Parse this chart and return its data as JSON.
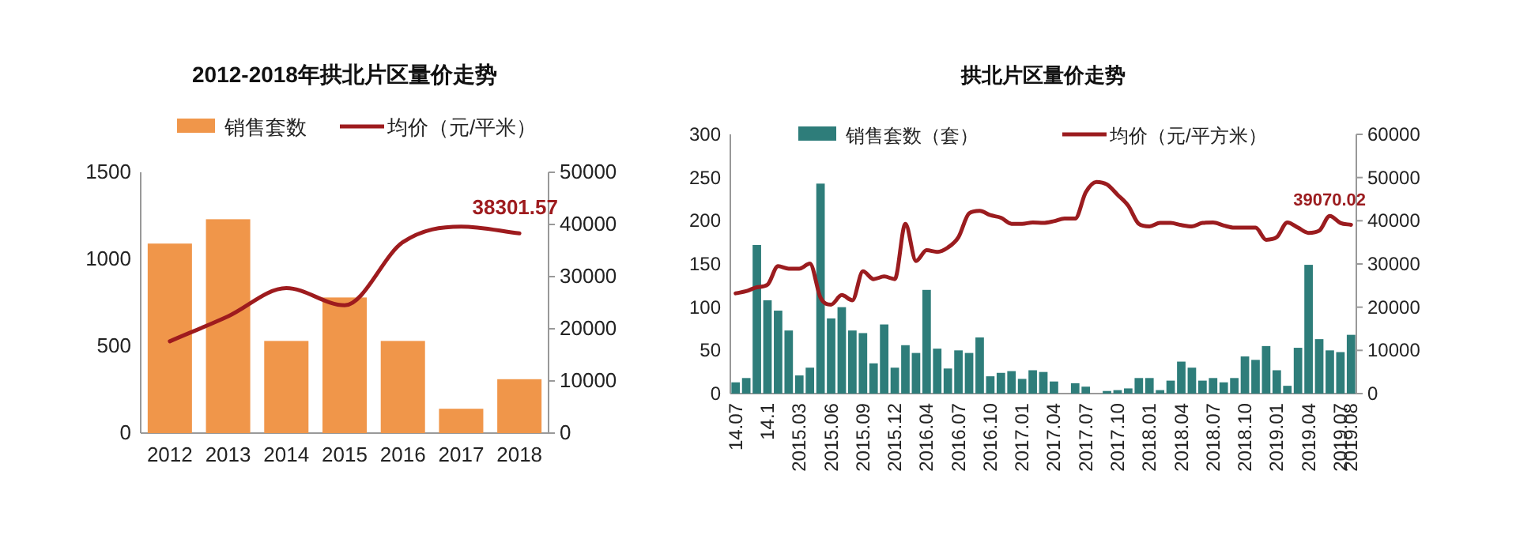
{
  "chart_data": [
    {
      "type": "bar",
      "title": "2012-2018年拱北片区量价走势",
      "categories": [
        "2012",
        "2013",
        "2014",
        "2015",
        "2016",
        "2017",
        "2018"
      ],
      "legend": "top",
      "ylim": [
        0,
        1500
      ],
      "yticks": [
        0,
        500,
        1000,
        1500
      ],
      "y2lim": [
        0,
        50000
      ],
      "y2ticks": [
        0,
        10000,
        20000,
        30000,
        40000,
        50000
      ],
      "series": [
        {
          "name": "销售套数",
          "color": "#f0964a",
          "values": [
            1090,
            1230,
            530,
            780,
            530,
            140,
            310
          ]
        },
        {
          "name": "均价（元/平米）",
          "type": "line",
          "axis": "y2",
          "color": "#9e1b1e",
          "values": [
            17600,
            22400,
            27800,
            24500,
            36600,
            39600,
            38301.57
          ],
          "value_labels": [
            null,
            null,
            null,
            null,
            null,
            null,
            "38301.57"
          ]
        }
      ]
    },
    {
      "type": "bar",
      "title": "拱北片区量价走势",
      "categories": [
        "14.07",
        null,
        null,
        "14.1",
        null,
        null,
        "2015.03",
        null,
        null,
        "2015.06",
        null,
        null,
        "2015.09",
        null,
        null,
        "2015.12",
        null,
        null,
        "2016.04",
        null,
        null,
        "2016.07",
        null,
        null,
        "2016.10",
        null,
        null,
        "2017.01",
        null,
        null,
        "2017.04",
        null,
        null,
        "2017.07",
        null,
        null,
        "2017.10",
        null,
        null,
        "2018.01",
        null,
        null,
        "2018.04",
        null,
        null,
        "2018.07",
        null,
        null,
        "2018.10",
        null,
        null,
        "2019.01",
        null,
        null,
        "2019.04",
        null,
        null,
        "2019.07",
        "2019.08"
      ],
      "legend": "top",
      "ylim": [
        0,
        300
      ],
      "yticks": [
        0,
        50,
        100,
        150,
        200,
        250,
        300
      ],
      "y2lim": [
        0,
        60000
      ],
      "y2ticks": [
        0,
        10000,
        20000,
        30000,
        40000,
        50000,
        60000
      ],
      "series": [
        {
          "name": "销售套数（套）",
          "color": "#2e7d7a",
          "values": [
            13,
            18,
            172,
            108,
            96,
            73,
            21,
            30,
            243,
            87,
            100,
            73,
            70,
            35,
            80,
            30,
            56,
            47,
            120,
            52,
            29,
            50,
            47,
            65,
            20,
            24,
            26,
            17,
            27,
            25,
            14,
            null,
            12,
            8,
            null,
            3,
            4,
            6,
            18,
            18,
            4,
            15,
            37,
            30,
            15,
            18,
            13,
            18,
            43,
            39,
            55,
            27,
            9,
            53,
            149,
            63,
            50,
            48,
            68
          ]
        },
        {
          "name": "均价（元/平方米）",
          "type": "line",
          "axis": "y2",
          "color": "#9b1c1f",
          "values": [
            23200,
            23700,
            24600,
            25200,
            29500,
            28900,
            28900,
            30100,
            22200,
            20600,
            22800,
            21600,
            28300,
            26500,
            27100,
            26500,
            39300,
            30700,
            33200,
            32800,
            33800,
            36200,
            41700,
            42300,
            41300,
            40700,
            39300,
            39300,
            39600,
            39500,
            39900,
            40500,
            40500,
            46600,
            49000,
            48400,
            46000,
            43500,
            39300,
            38700,
            39500,
            39500,
            39000,
            38700,
            39500,
            39600,
            38900,
            38400,
            38400,
            38400,
            35600,
            36200,
            39600,
            38400,
            37200,
            37700,
            41100,
            39500,
            39070.02
          ],
          "value_labels": [
            null,
            null,
            null,
            null,
            null,
            null,
            null,
            null,
            null,
            null,
            null,
            null,
            null,
            null,
            null,
            null,
            null,
            null,
            null,
            null,
            null,
            null,
            null,
            null,
            null,
            null,
            null,
            null,
            null,
            null,
            null,
            null,
            null,
            null,
            null,
            null,
            null,
            null,
            null,
            null,
            null,
            null,
            null,
            null,
            null,
            null,
            null,
            null,
            null,
            null,
            null,
            null,
            null,
            null,
            null,
            null,
            null,
            null,
            "39070.02"
          ]
        }
      ]
    }
  ]
}
